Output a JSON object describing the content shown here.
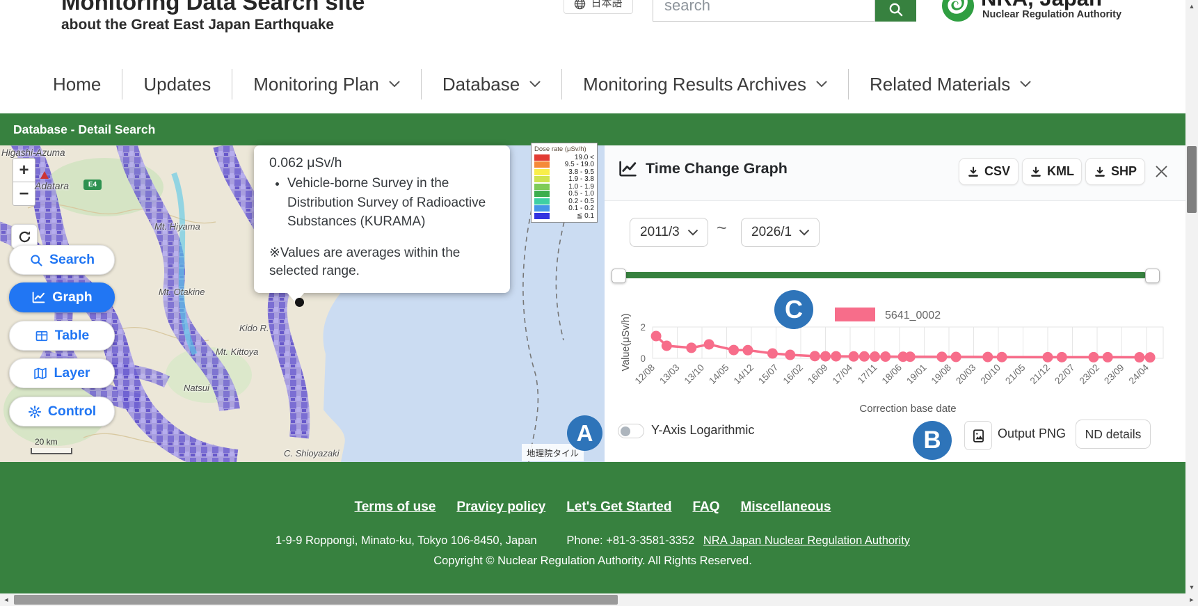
{
  "colors": {
    "accent_green": "#37813f",
    "chart_pink": "#f76d8a",
    "annotation_blue": "#2e74b9",
    "active_blue": "#2176f3"
  },
  "header": {
    "title": "Monitoring Data Search site",
    "subtitle": "about the Great East Japan Earthquake",
    "language": "日本語",
    "search_placeholder": "search",
    "logo_title": "NRA, Japan",
    "logo_subtitle": "Nuclear Regulation Authority"
  },
  "nav": {
    "items": [
      {
        "label": "Home",
        "dropdown": false
      },
      {
        "label": "Updates",
        "dropdown": false
      },
      {
        "label": "Monitoring Plan",
        "dropdown": true
      },
      {
        "label": "Database",
        "dropdown": true
      },
      {
        "label": "Monitoring Results Archives",
        "dropdown": true
      },
      {
        "label": "Related Materials",
        "dropdown": true
      }
    ]
  },
  "breadcrumb": {
    "title": "Database - Detail Search"
  },
  "map": {
    "zoom_in": "+",
    "zoom_out": "−",
    "tools": [
      {
        "label": "Search",
        "icon": "search-icon",
        "active": false
      },
      {
        "label": "Graph",
        "icon": "graph-icon",
        "active": true
      },
      {
        "label": "Table",
        "icon": "table-icon",
        "active": false
      },
      {
        "label": "Layer",
        "icon": "layer-icon",
        "active": false
      },
      {
        "label": "Control",
        "icon": "gear-icon",
        "active": false
      }
    ],
    "place_labels": [
      "Higashi-Azuma",
      "Adatara",
      "Mt. Hiyama",
      "Mt. Otakine",
      "Kido R.",
      "Mt. Kittoya",
      "Natsui",
      "C. Shioyazaki"
    ],
    "road_badge": "E4",
    "scale_label": "20 km",
    "attribution": "地理院タイル",
    "popup": {
      "value": "0.062 μSv/h",
      "bullet": "Vehicle-borne Survey in the Distribution Survey of Radioactive Substances (KURAMA)",
      "note": "※Values are averages within the selected range."
    },
    "legend": {
      "title": "Dose rate (μSv/h)",
      "entries": [
        {
          "color": "#e23b33",
          "label": "19.0 <"
        },
        {
          "color": "#f58a38",
          "label": "9.5 - 19.0"
        },
        {
          "color": "#f9ee4a",
          "label": "3.8 - 9.5"
        },
        {
          "color": "#cfe34f",
          "label": "1.9 - 3.8"
        },
        {
          "color": "#7ecb57",
          "label": "1.0 - 1.9"
        },
        {
          "color": "#3cae4e",
          "label": "0.5 - 1.0"
        },
        {
          "color": "#3ed0a4",
          "label": "0.2 - 0.5"
        },
        {
          "color": "#4596e8",
          "label": "0.1 - 0.2"
        },
        {
          "color": "#3333e0",
          "label": "≦ 0.1"
        }
      ]
    }
  },
  "panel": {
    "title": "Time Change Graph",
    "export_buttons": [
      "CSV",
      "KML",
      "SHP"
    ],
    "date_from": "2011/3",
    "date_to": "2026/1",
    "range_separator": "~",
    "toggle_label": "Y-Axis Logarithmic",
    "output_png_label": "Output PNG",
    "nd_details_label": "ND details",
    "annotations": {
      "a": "A",
      "b": "B",
      "c": "C"
    }
  },
  "chart_data": {
    "type": "line",
    "series": [
      {
        "name": "5641_0002",
        "color": "#f76d8a",
        "points": [
          [
            1,
            1.42
          ],
          [
            4,
            0.8
          ],
          [
            11,
            0.67
          ],
          [
            16,
            0.89
          ],
          [
            23,
            0.53
          ],
          [
            27,
            0.52
          ],
          [
            34,
            0.31
          ],
          [
            39,
            0.22
          ],
          [
            46,
            0.14
          ],
          [
            49,
            0.13
          ],
          [
            52,
            0.13
          ],
          [
            57,
            0.12
          ],
          [
            60,
            0.12
          ],
          [
            63,
            0.11
          ],
          [
            66,
            0.11
          ],
          [
            71,
            0.1
          ],
          [
            73,
            0.1
          ],
          [
            82,
            0.095
          ],
          [
            86,
            0.09
          ],
          [
            95,
            0.085
          ],
          [
            99,
            0.08
          ],
          [
            112,
            0.075
          ],
          [
            116,
            0.075
          ],
          [
            125,
            0.07
          ],
          [
            129,
            0.07
          ],
          [
            138,
            0.065
          ],
          [
            141,
            0.06
          ]
        ]
      }
    ],
    "x_unit": "months since 2012/08",
    "x_tick_months": [
      0,
      7,
      14,
      21,
      28,
      35,
      42,
      49,
      56,
      63,
      70,
      77,
      84,
      91,
      98,
      105,
      112,
      119,
      126,
      133,
      140
    ],
    "x_tick_labels": [
      "12/08",
      "13/03",
      "13/10",
      "14/05",
      "14/12",
      "15/07",
      "16/02",
      "16/09",
      "17/04",
      "17/11",
      "18/06",
      "19/01",
      "19/08",
      "20/03",
      "20/10",
      "21/05",
      "21/12",
      "22/07",
      "23/02",
      "23/09",
      "24/04"
    ],
    "x_axis_title": "Correction base date",
    "y_axis_title": "Value(μSv/h)",
    "y_ticks": [
      0,
      2
    ],
    "ylim": [
      0,
      2
    ],
    "grid": true,
    "legend_position": "top-right"
  },
  "footer": {
    "links": [
      "Terms of use",
      "Pravicy policy",
      "Let's Get Started",
      "FAQ",
      "Miscellaneous"
    ],
    "address": "1-9-9 Roppongi, Minato-ku, Tokyo 106-8450, Japan",
    "phone": "Phone: +81-3-3581-3352",
    "authority_link": "NRA Japan Nuclear Regulation Authority",
    "copyright": "Copyright © Nuclear Regulation Authority. All Rights Reserved."
  },
  "scrollbar": {
    "up": "▲",
    "down": "▼",
    "left": "◄",
    "right": "►"
  }
}
